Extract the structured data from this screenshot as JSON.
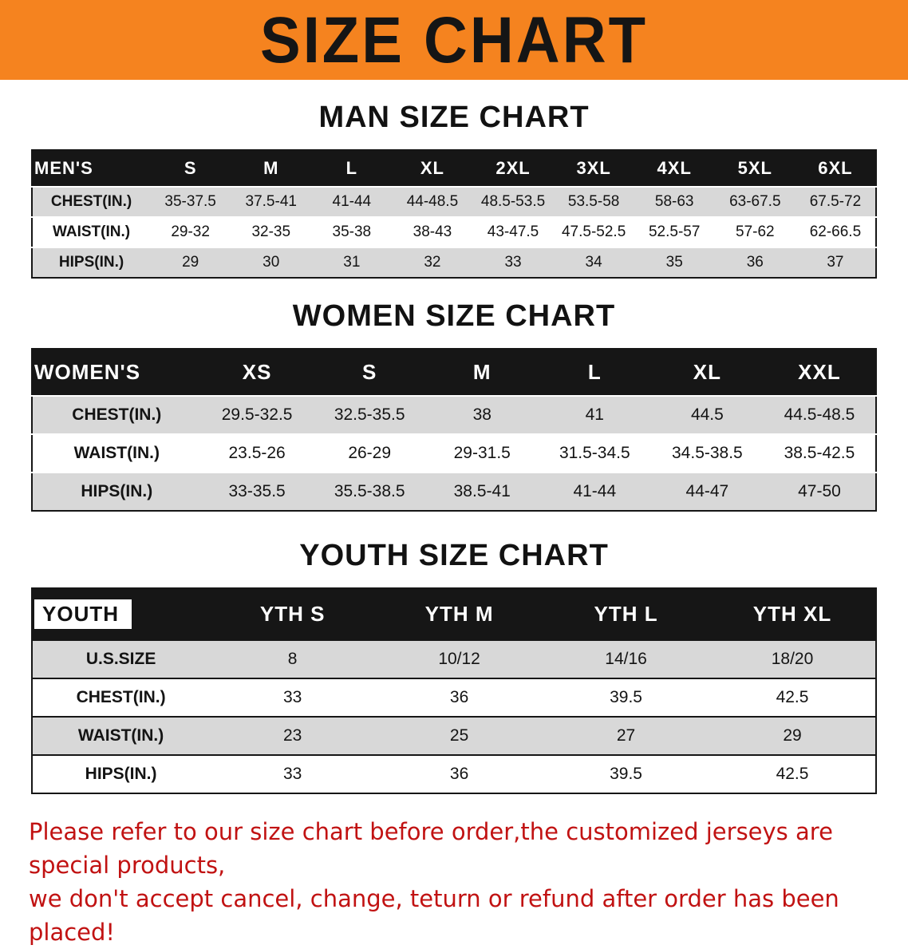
{
  "banner": {
    "title": "SIZE CHART",
    "bg_color": "#F5831F"
  },
  "sections": [
    {
      "key": "men",
      "heading": "MAN SIZE CHART",
      "table": {
        "header": [
          "MEN'S",
          "S",
          "M",
          "L",
          "XL",
          "2XL",
          "3XL",
          "4XL",
          "5XL",
          "6XL"
        ],
        "rows": [
          {
            "label": "CHEST(IN.)",
            "values": [
              "35-37.5",
              "37.5-41",
              "41-44",
              "44-48.5",
              "48.5-53.5",
              "53.5-58",
              "58-63",
              "63-67.5",
              "67.5-72"
            ]
          },
          {
            "label": "WAIST(IN.)",
            "values": [
              "29-32",
              "32-35",
              "35-38",
              "38-43",
              "43-47.5",
              "47.5-52.5",
              "52.5-57",
              "57-62",
              "62-66.5"
            ]
          },
          {
            "label": "HIPS(IN.)",
            "values": [
              "29",
              "30",
              "31",
              "32",
              "33",
              "34",
              "35",
              "36",
              "37"
            ]
          }
        ]
      }
    },
    {
      "key": "women",
      "heading": "WOMEN SIZE CHART",
      "table": {
        "header": [
          "WOMEN'S",
          "XS",
          "S",
          "M",
          "L",
          "XL",
          "XXL"
        ],
        "rows": [
          {
            "label": "CHEST(IN.)",
            "values": [
              "29.5-32.5",
              "32.5-35.5",
              "38",
              "41",
              "44.5",
              "44.5-48.5"
            ]
          },
          {
            "label": "WAIST(IN.)",
            "values": [
              "23.5-26",
              "26-29",
              "29-31.5",
              "31.5-34.5",
              "34.5-38.5",
              "38.5-42.5"
            ]
          },
          {
            "label": "HIPS(IN.)",
            "values": [
              "33-35.5",
              "35.5-38.5",
              "38.5-41",
              "41-44",
              "44-47",
              "47-50"
            ]
          }
        ]
      }
    },
    {
      "key": "youth",
      "heading": "YOUTH SIZE CHART",
      "table": {
        "header": [
          "YOUTH",
          "YTH S",
          "YTH M",
          "YTH L",
          "YTH XL"
        ],
        "rows": [
          {
            "label": "U.S.SIZE",
            "values": [
              "8",
              "10/12",
              "14/16",
              "18/20"
            ]
          },
          {
            "label": "CHEST(IN.)",
            "values": [
              "33",
              "36",
              "39.5",
              "42.5"
            ]
          },
          {
            "label": "WAIST(IN.)",
            "values": [
              "23",
              "25",
              "27",
              "29"
            ]
          },
          {
            "label": "HIPS(IN.)",
            "values": [
              "33",
              "36",
              "39.5",
              "42.5"
            ]
          }
        ]
      }
    }
  ],
  "notice": {
    "line1": "Please refer to our size chart before order,the customized jerseys are special products,",
    "line2": "we don't accept cancel, change, teturn or refund after order has been placed!",
    "color": "#C11212"
  }
}
